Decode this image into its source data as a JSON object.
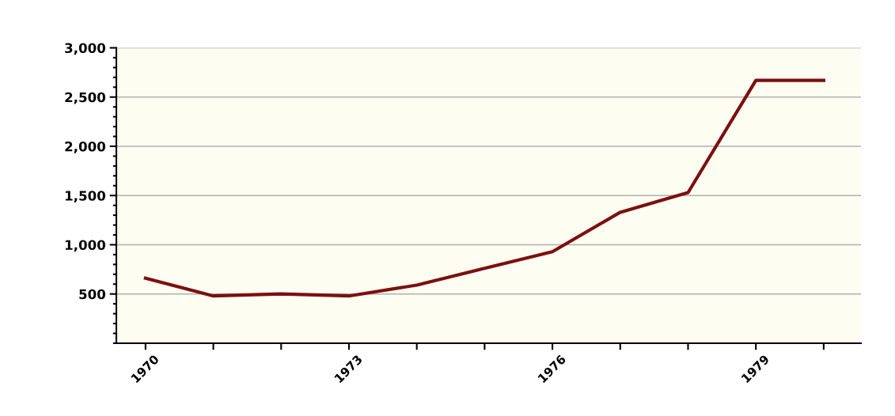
{
  "chart_data": {
    "type": "line",
    "x": [
      1970,
      1971,
      1972,
      1973,
      1974,
      1975,
      1976,
      1977,
      1978,
      1979,
      1980
    ],
    "series": [
      {
        "color": "#7b1010",
        "values": [
          660,
          480,
          500,
          480,
          590,
          760,
          930,
          1330,
          1530,
          2670,
          2670
        ]
      }
    ],
    "xlim": [
      1969.57,
      1980.55
    ],
    "xticks": [
      1970,
      {
        "value": 1971,
        "label": null
      },
      {
        "value": 1972,
        "label": null
      },
      1973,
      {
        "value": 1974,
        "label": null
      },
      {
        "value": 1975,
        "label": null
      },
      1976,
      {
        "value": 1977,
        "label": null
      },
      {
        "value": 1978,
        "label": null
      },
      1979,
      {
        "value": 1980,
        "label": null
      }
    ],
    "ylim": [
      0,
      3000
    ],
    "yticks": [
      {
        "value": 0,
        "label": null
      },
      {
        "value": 100,
        "label": null
      },
      {
        "value": 200,
        "label": null
      },
      {
        "value": 300,
        "label": null
      },
      {
        "value": 400,
        "label": null
      },
      {
        "value": 500,
        "label": "500"
      },
      {
        "value": 600,
        "label": null
      },
      {
        "value": 700,
        "label": null
      },
      {
        "value": 800,
        "label": null
      },
      {
        "value": 900,
        "label": null
      },
      {
        "value": 1000,
        "label": "1,000"
      },
      {
        "value": 1100,
        "label": null
      },
      {
        "value": 1200,
        "label": null
      },
      {
        "value": 1300,
        "label": null
      },
      {
        "value": 1400,
        "label": null
      },
      {
        "value": 1500,
        "label": "1,500"
      },
      {
        "value": 1600,
        "label": null
      },
      {
        "value": 1700,
        "label": null
      },
      {
        "value": 1800,
        "label": null
      },
      {
        "value": 1900,
        "label": null
      },
      {
        "value": 2000,
        "label": "2,000"
      },
      {
        "value": 2100,
        "label": null
      },
      {
        "value": 2200,
        "label": null
      },
      {
        "value": 2300,
        "label": null
      },
      {
        "value": 2400,
        "label": null
      },
      {
        "value": 2500,
        "label": "2,500"
      },
      {
        "value": 2600,
        "label": null
      },
      {
        "value": 2700,
        "label": null
      },
      {
        "value": 2800,
        "label": null
      },
      {
        "value": 2900,
        "label": null
      },
      {
        "value": 3000,
        "label": "3,000"
      }
    ],
    "grid": "y",
    "marker": "none",
    "line_style": "solid"
  }
}
